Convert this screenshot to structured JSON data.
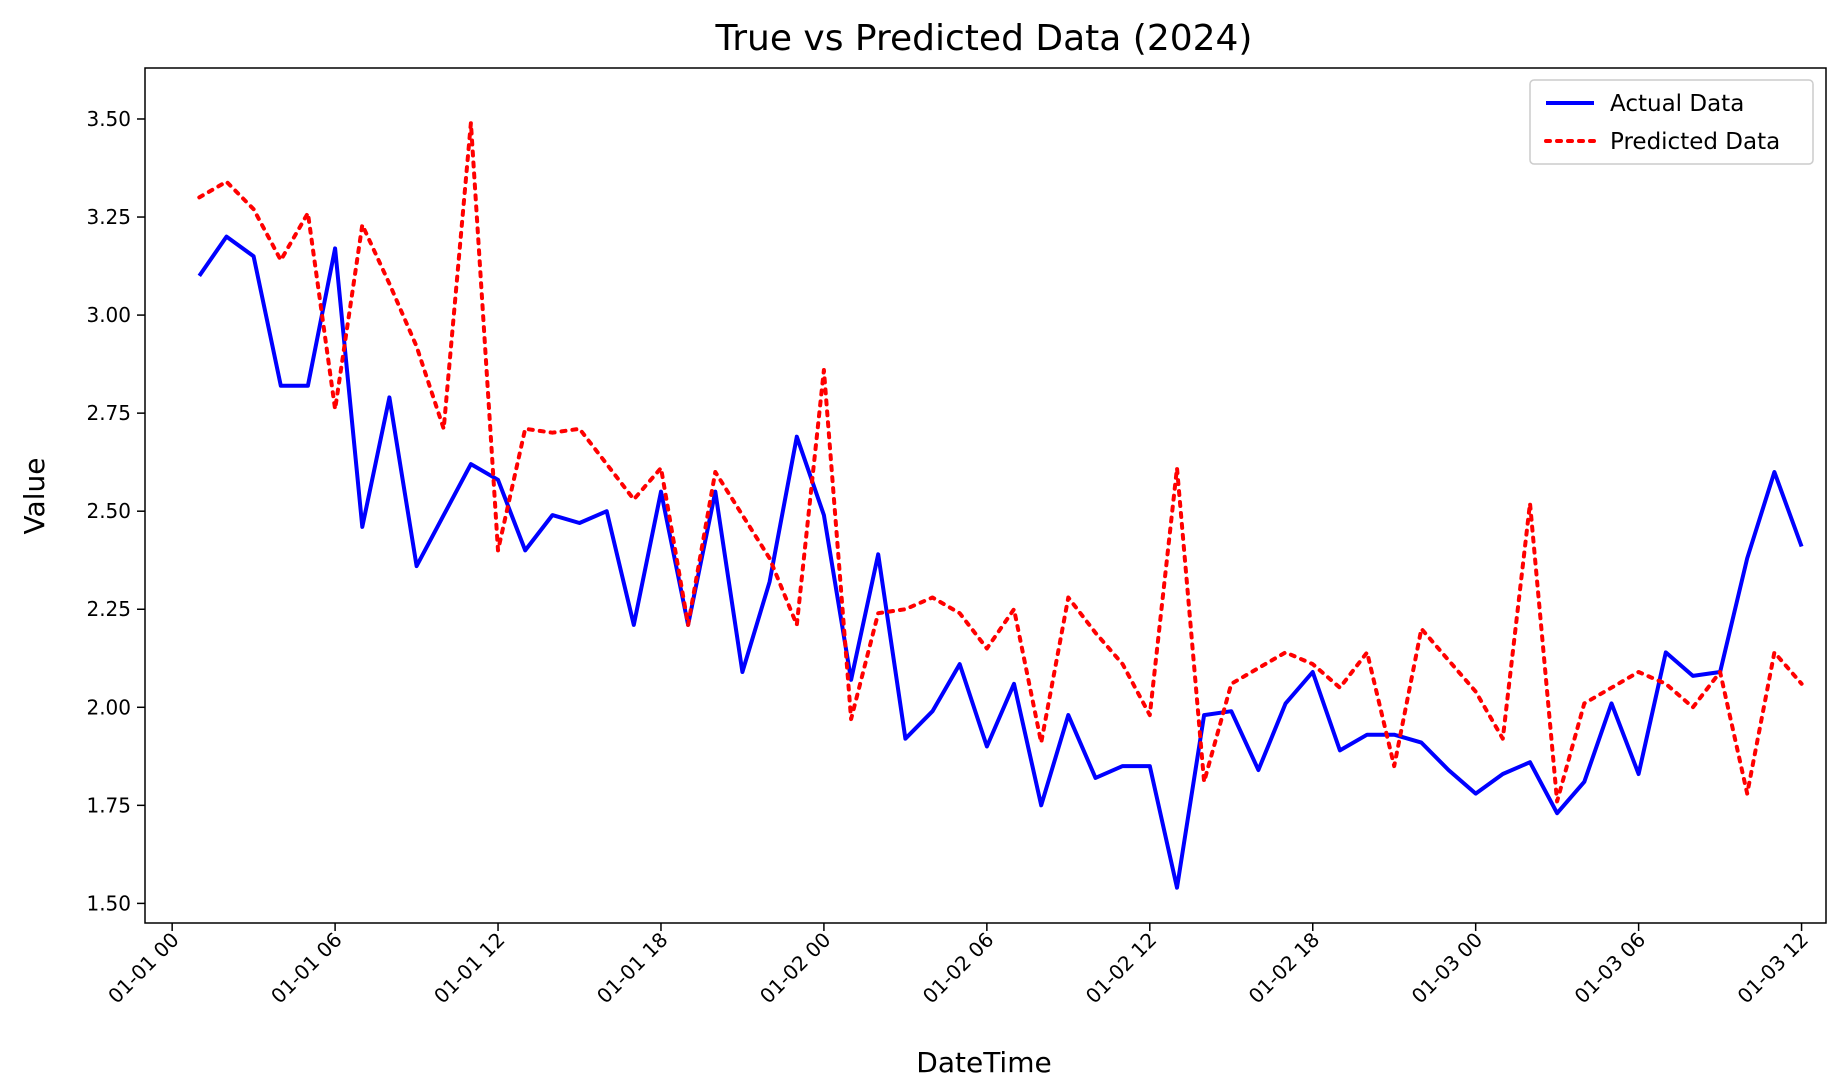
{
  "chart_data": {
    "type": "line",
    "title": "True vs Predicted Data (2024)",
    "xlabel": "DateTime",
    "ylabel": "Value",
    "x_start": "2024-01-01 01:00",
    "x_step_hours": 1,
    "x_ticks": [
      "01-01 00",
      "01-01 06",
      "01-01 12",
      "01-01 18",
      "01-02 00",
      "01-02 06",
      "01-02 12",
      "01-02 18",
      "01-03 00",
      "01-03 06",
      "01-03 12"
    ],
    "y_ticks": [
      "1.50",
      "1.75",
      "2.00",
      "2.25",
      "2.50",
      "2.75",
      "3.00",
      "3.25",
      "3.50"
    ],
    "ylim": [
      1.45,
      3.63
    ],
    "grid": false,
    "legend_position": "top-right",
    "series": [
      {
        "name": "Actual Data",
        "color": "#0000ff",
        "style": "solid",
        "values": [
          3.1,
          3.2,
          3.15,
          2.82,
          2.82,
          3.17,
          2.46,
          2.79,
          2.36,
          2.49,
          2.62,
          2.58,
          2.4,
          2.49,
          2.47,
          2.5,
          2.21,
          2.55,
          2.21,
          2.55,
          2.09,
          2.32,
          2.69,
          2.49,
          2.07,
          2.39,
          1.92,
          1.99,
          2.11,
          1.9,
          2.06,
          1.75,
          1.98,
          1.82,
          1.85,
          1.85,
          1.54,
          1.98,
          1.99,
          1.84,
          2.01,
          2.09,
          1.89,
          1.93,
          1.93,
          1.91,
          1.84,
          1.78,
          1.83,
          1.86,
          1.73,
          1.81,
          2.01,
          1.83,
          2.14,
          2.08,
          2.09,
          2.38,
          2.6,
          2.41
        ]
      },
      {
        "name": "Predicted Data",
        "color": "#ff0000",
        "style": "dotted",
        "values": [
          3.3,
          3.34,
          3.27,
          3.14,
          3.26,
          2.76,
          3.23,
          3.08,
          2.92,
          2.71,
          3.49,
          2.4,
          2.71,
          2.7,
          2.71,
          2.62,
          2.53,
          2.61,
          2.21,
          2.6,
          2.49,
          2.38,
          2.21,
          2.86,
          1.97,
          2.24,
          2.25,
          2.28,
          2.24,
          2.15,
          2.25,
          1.91,
          2.28,
          2.19,
          2.11,
          1.98,
          2.61,
          1.81,
          2.06,
          2.1,
          2.14,
          2.11,
          2.05,
          2.14,
          1.85,
          2.2,
          2.12,
          2.04,
          1.92,
          2.52,
          1.76,
          2.01,
          2.05,
          2.09,
          2.06,
          2.0,
          2.09,
          1.78,
          2.14,
          2.06
        ]
      }
    ]
  }
}
